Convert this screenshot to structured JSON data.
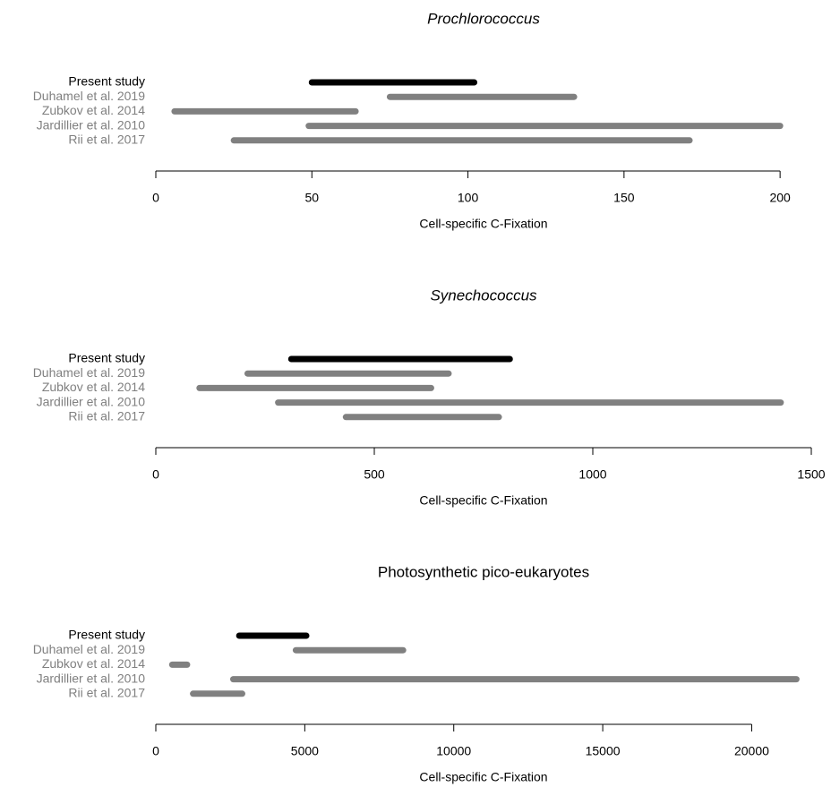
{
  "chart_data": [
    {
      "type": "range",
      "title": "Prochlorococcus",
      "italic": true,
      "categories": [
        "Present study",
        "Duhamel et al. 2019",
        "Zubkov et al. 2014",
        "Jardillier et al. 2010",
        "Rii et al. 2017"
      ],
      "colors": [
        "#000000",
        "#808080",
        "#808080",
        "#808080",
        "#808080"
      ],
      "values": [
        [
          50,
          102
        ],
        [
          75,
          134
        ],
        [
          6,
          64
        ],
        [
          49,
          200
        ],
        [
          25,
          171
        ]
      ],
      "xlim": [
        0,
        210
      ],
      "xticks": [
        0,
        50,
        100,
        150,
        200
      ],
      "xlabel": "Cell-specific C-Fixation"
    },
    {
      "type": "range",
      "title": "Synechococcus",
      "italic": true,
      "categories": [
        "Present study",
        "Duhamel et al. 2019",
        "Zubkov et al. 2014",
        "Jardillier et al. 2010",
        "Rii et al. 2017"
      ],
      "colors": [
        "#000000",
        "#808080",
        "#808080",
        "#808080",
        "#808080"
      ],
      "values": [
        [
          310,
          810
        ],
        [
          210,
          670
        ],
        [
          100,
          630
        ],
        [
          280,
          1430
        ],
        [
          435,
          785
        ]
      ],
      "xlim": [
        0,
        1500
      ],
      "xticks": [
        0,
        500,
        1000,
        1500
      ],
      "xlabel": "Cell-specific C-Fixation"
    },
    {
      "type": "range",
      "title": "Photosynthetic pico-eukaryotes",
      "italic": false,
      "categories": [
        "Present study",
        "Duhamel et al. 2019",
        "Zubkov et al. 2014",
        "Jardillier et al. 2010",
        "Rii et al. 2017"
      ],
      "colors": [
        "#000000",
        "#808080",
        "#808080",
        "#808080",
        "#808080"
      ],
      "values": [
        [
          2800,
          5050
        ],
        [
          4700,
          8300
        ],
        [
          550,
          1050
        ],
        [
          2600,
          21500
        ],
        [
          1250,
          2900
        ]
      ],
      "xlim": [
        0,
        22000
      ],
      "xticks": [
        0,
        5000,
        10000,
        15000,
        20000
      ],
      "xlabel": "Cell-specific C-Fixation"
    }
  ]
}
